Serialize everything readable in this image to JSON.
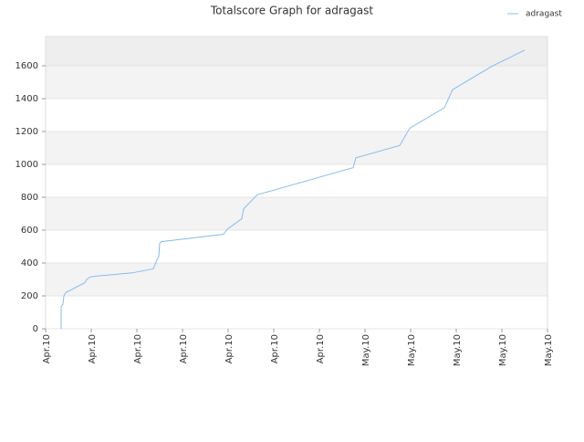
{
  "chart_data": {
    "type": "line",
    "title": "Totalscore Graph for adragast",
    "x": [
      0.34,
      0.34,
      0.38,
      0.4,
      0.44,
      0.86,
      0.9,
      0.98,
      1.1,
      1.9,
      2.36,
      2.44,
      2.48,
      2.5,
      2.54,
      3.9,
      3.98,
      4.3,
      4.34,
      4.64,
      6.74,
      6.8,
      7.76,
      7.98,
      8.74,
      8.92,
      9.8,
      10.5
    ],
    "series": [
      {
        "name": "adragast",
        "color": "#88bbee",
        "values": [
          0,
          135,
          150,
          200,
          220,
          280,
          300,
          315,
          320,
          340,
          365,
          420,
          440,
          520,
          530,
          575,
          605,
          670,
          730,
          815,
          980,
          1040,
          1115,
          1220,
          1345,
          1455,
          1600,
          1695
        ]
      }
    ],
    "xlim": [
      0,
      11
    ],
    "xticks": [
      {
        "value": 0,
        "label": "Apr.10"
      },
      {
        "value": 1,
        "label": "Apr.10"
      },
      {
        "value": 2,
        "label": "Apr.10"
      },
      {
        "value": 3,
        "label": "Apr.10"
      },
      {
        "value": 4,
        "label": "Apr.10"
      },
      {
        "value": 5,
        "label": "Apr.10"
      },
      {
        "value": 6,
        "label": "Apr.10"
      },
      {
        "value": 7,
        "label": "May.10"
      },
      {
        "value": 8,
        "label": "May.10"
      },
      {
        "value": 9,
        "label": "May.10"
      },
      {
        "value": 10,
        "label": "May.10"
      },
      {
        "value": 11,
        "label": "May.10"
      }
    ],
    "ylim": [
      0,
      1778
    ],
    "yticks": [
      0,
      200,
      400,
      600,
      800,
      1000,
      1200,
      1400,
      1600
    ],
    "grid": true,
    "legend": "top-right"
  }
}
